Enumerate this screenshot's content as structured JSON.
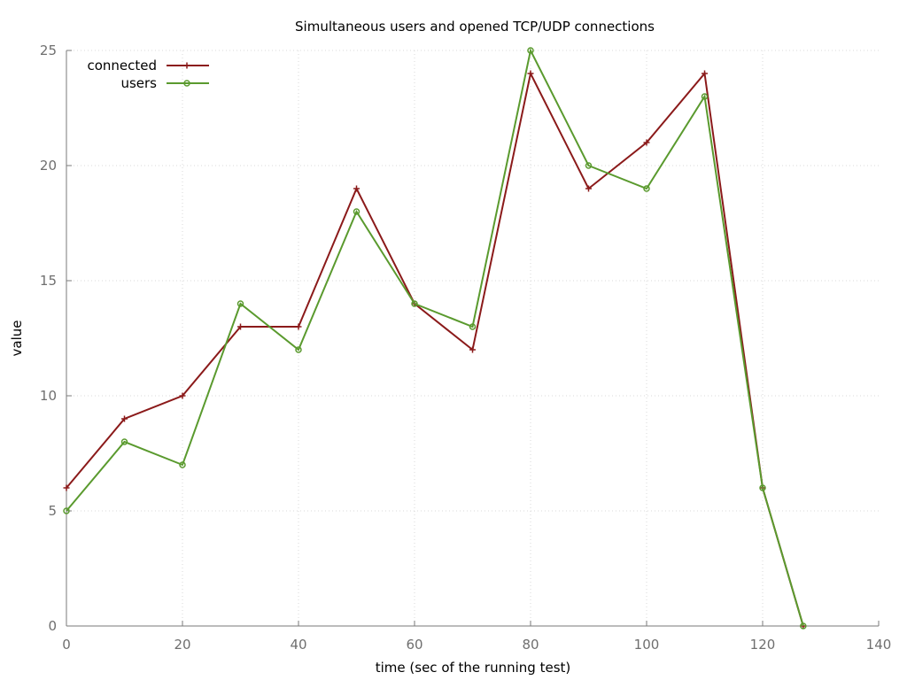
{
  "chart_data": {
    "type": "line",
    "title": "Simultaneous users and opened TCP/UDP connections",
    "xlabel": "time (sec of the running test)",
    "ylabel": "value",
    "xlim": [
      0,
      140
    ],
    "ylim": [
      0,
      25
    ],
    "xticks": [
      0,
      20,
      40,
      60,
      80,
      100,
      120,
      140
    ],
    "yticks": [
      0,
      5,
      10,
      15,
      20,
      25
    ],
    "x": [
      0,
      10,
      20,
      30,
      40,
      50,
      60,
      70,
      80,
      90,
      100,
      110,
      120,
      127
    ],
    "grid": true,
    "legend_position": "top-left",
    "series": [
      {
        "name": "connected",
        "color": "#8b1a1a",
        "marker": "plus",
        "values": [
          6,
          9,
          10,
          13,
          13,
          19,
          14,
          12,
          24,
          19,
          21,
          24,
          6,
          0
        ]
      },
      {
        "name": "users",
        "color": "#5a9a2e",
        "marker": "circle",
        "values": [
          5,
          8,
          7,
          14,
          12,
          18,
          14,
          13,
          25,
          20,
          19,
          23,
          6,
          0
        ]
      }
    ]
  }
}
